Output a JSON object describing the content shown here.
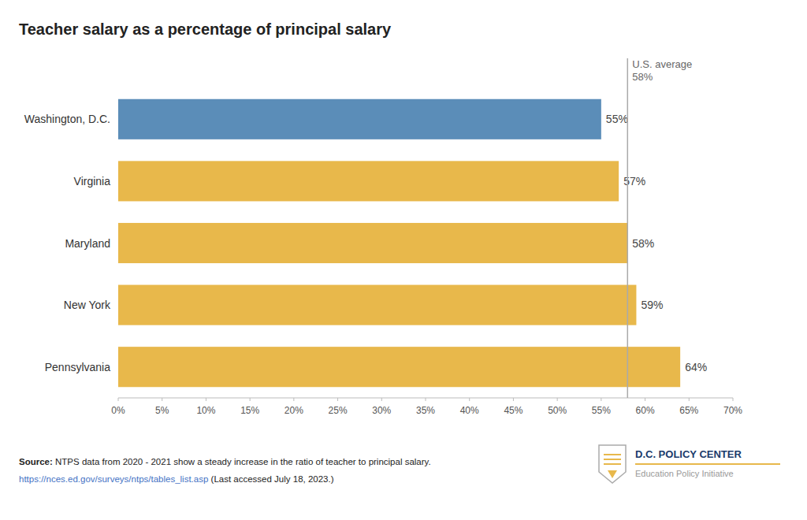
{
  "chart_data": {
    "type": "bar",
    "orientation": "horizontal",
    "title": "Teacher salary as a percentage of principal salary",
    "categories": [
      "Washington, D.C.",
      "Virginia",
      "Maryland",
      "New York",
      "Pennsylvania"
    ],
    "values": [
      55,
      57,
      58,
      59,
      64
    ],
    "value_labels": [
      "55%",
      "57%",
      "58%",
      "59%",
      "64%"
    ],
    "colors": [
      "#5B8DB8",
      "#E8B84B",
      "#E8B84B",
      "#E8B84B",
      "#E8B84B"
    ],
    "data_labels": true,
    "grid": false,
    "xlim": [
      0,
      70
    ],
    "xticks": [
      {
        "value": 0,
        "label": "0%"
      },
      {
        "value": 5,
        "label": "5%"
      },
      {
        "value": 10,
        "label": "10%"
      },
      {
        "value": 15,
        "label": "15%"
      },
      {
        "value": 20,
        "label": "20%"
      },
      {
        "value": 25,
        "label": "25%"
      },
      {
        "value": 30,
        "label": "30%"
      },
      {
        "value": 35,
        "label": "35%"
      },
      {
        "value": 40,
        "label": "40%"
      },
      {
        "value": 45,
        "label": "45%"
      },
      {
        "value": 50,
        "label": "50%"
      },
      {
        "value": 55,
        "label": "55%"
      },
      {
        "value": 60,
        "label": "60%"
      },
      {
        "value": 65,
        "label": "65%"
      },
      {
        "value": 70,
        "label": "70%"
      }
    ],
    "annotations": [
      {
        "type": "reference_line",
        "x": 58,
        "text": [
          "U.S. average",
          "58%"
        ],
        "color": "#AAAAAA"
      },
      {
        "type": "source",
        "text": [
          "Source:",
          " NTPS data from 2020 - 2021 show a steady increase in the ratio of teacher to principal salary."
        ]
      },
      {
        "type": "link",
        "text": [
          "https://nces.ed.gov/surveys/ntps/tables_list.asp",
          " (Last accessed July 18, 2023.)"
        ],
        "color": "#4472C4"
      },
      {
        "type": "logo",
        "text": [
          "D.C. POLICY CENTER",
          "Education Policy Initiative"
        ],
        "color": "#1A3A6B"
      }
    ]
  }
}
